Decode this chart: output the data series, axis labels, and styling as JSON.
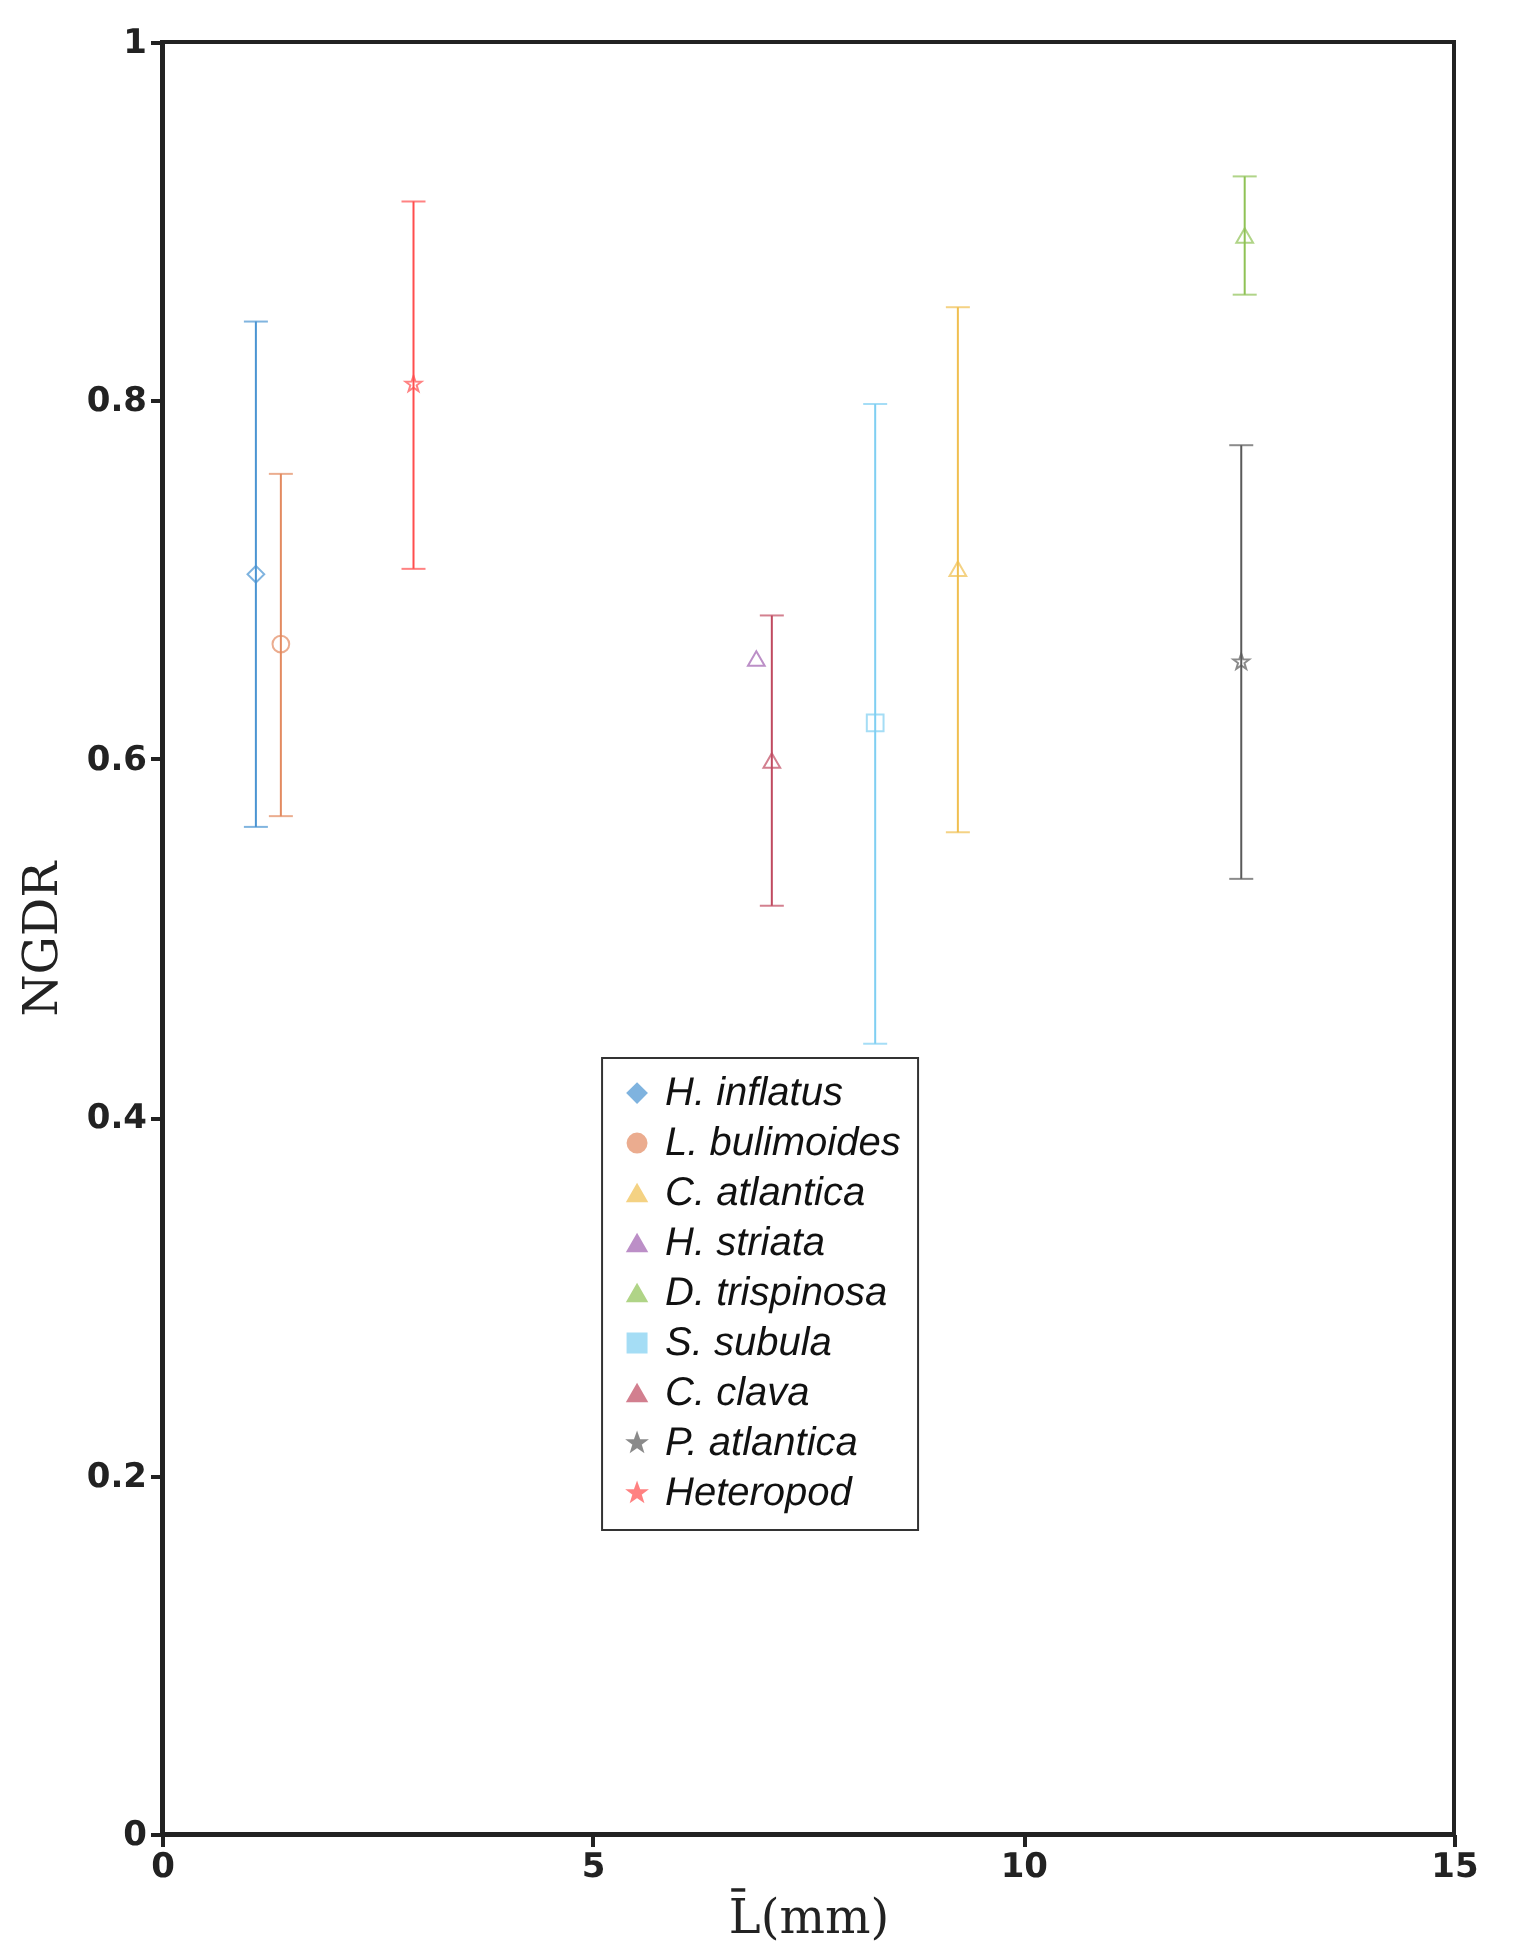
{
  "chart_data": {
    "type": "scatter",
    "xlabel": "L̄(mm)",
    "ylabel": "NGDR",
    "xlim": [
      0,
      15
    ],
    "xticks": [
      0,
      5,
      10,
      15
    ],
    "ylim": [
      0,
      1
    ],
    "yticks": [
      0,
      0.2,
      0.4,
      0.6,
      0.8,
      1
    ],
    "grid": false,
    "legend": "bottom",
    "series": [
      {
        "name": "H. inflatus",
        "color": "#4a94d2",
        "marker": "diamond",
        "x": [
          1.09
        ],
        "values": [
          0.703
        ],
        "errors": [
          [
            0.562,
            0.844
          ]
        ]
      },
      {
        "name": "L. bulimoides",
        "color": "#e38a60",
        "marker": "circle",
        "x": [
          1.38
        ],
        "values": [
          0.664
        ],
        "errors": [
          [
            0.568,
            0.759
          ]
        ]
      },
      {
        "name": "C. atlantica",
        "color": "#f0bf50",
        "marker": "triangle",
        "x": [
          9.24
        ],
        "values": [
          0.706
        ],
        "errors": [
          [
            0.559,
            0.852
          ]
        ]
      },
      {
        "name": "H. striata",
        "color": "#a060b0",
        "marker": "triangle",
        "x": [
          6.9
        ],
        "values": [
          0.656
        ],
        "errors": [
          null
        ]
      },
      {
        "name": "D. trispinosa",
        "color": "#8fc255",
        "marker": "triangle",
        "x": [
          12.57
        ],
        "values": [
          0.892
        ],
        "errors": [
          [
            0.859,
            0.925
          ]
        ]
      },
      {
        "name": "S. subula",
        "color": "#7fcff2",
        "marker": "square",
        "x": [
          8.28
        ],
        "values": [
          0.62
        ],
        "errors": [
          [
            0.441,
            0.798
          ]
        ]
      },
      {
        "name": "C. clava",
        "color": "#c04a60",
        "marker": "triangle",
        "x": [
          7.08
        ],
        "values": [
          0.599
        ],
        "errors": [
          [
            0.518,
            0.68
          ]
        ]
      },
      {
        "name": "P. atlantica",
        "color": "#5a5a5a",
        "marker": "star",
        "x": [
          12.53
        ],
        "values": [
          0.654
        ],
        "errors": [
          [
            0.533,
            0.775
          ]
        ]
      },
      {
        "name": "Heteropod",
        "color": "#ff4d4d",
        "marker": "star",
        "x": [
          2.92
        ],
        "values": [
          0.809
        ],
        "errors": [
          [
            0.706,
            0.911
          ]
        ]
      }
    ]
  }
}
